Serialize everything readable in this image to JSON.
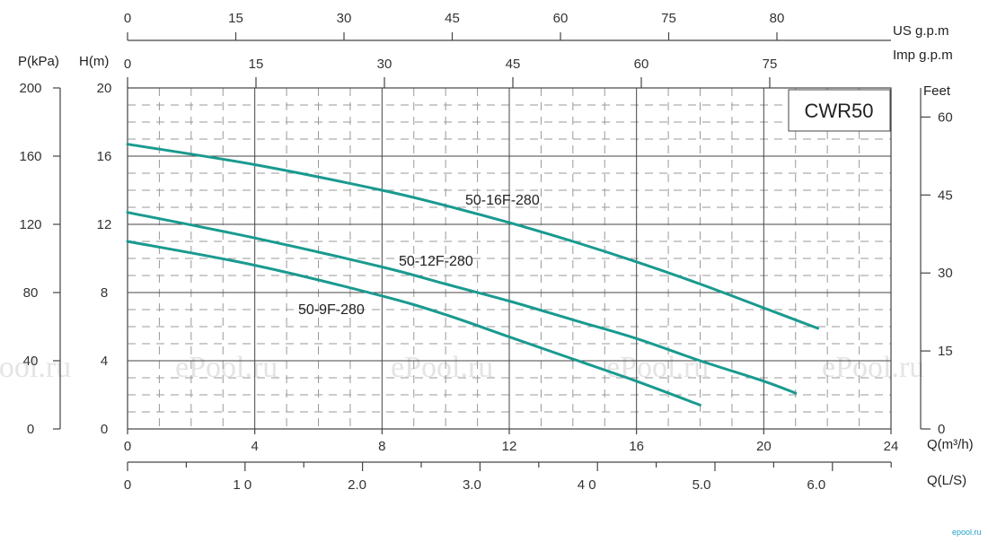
{
  "chart_data": {
    "type": "line",
    "model_label": "CWR50",
    "x": {
      "unit_label": "Q(m³/h)",
      "range": [
        0,
        24
      ],
      "ticks": [
        "0",
        "4",
        "8",
        "12",
        "16",
        "20",
        "24"
      ]
    },
    "y": {
      "unit_label": "H(m)",
      "range": [
        0,
        20
      ],
      "ticks": [
        "0",
        "4",
        "8",
        "12",
        "16",
        "20"
      ]
    },
    "y_kpa": {
      "unit_label": "P(kPa)",
      "ticks": [
        "0",
        "40",
        "80",
        "120",
        "160",
        "200"
      ]
    },
    "y_feet": {
      "unit_label": "Feet",
      "ticks": [
        "0",
        "15",
        "30",
        "45",
        "60"
      ]
    },
    "x_us_gpm": {
      "unit_label": "US  g.p.m",
      "ticks": [
        "0",
        "15",
        "30",
        "45",
        "60",
        "75",
        "80"
      ]
    },
    "x_imp_gpm": {
      "unit_label": "Imp  g.p.m",
      "ticks": [
        "0",
        "15",
        "30",
        "45",
        "60",
        "75"
      ]
    },
    "x_ls": {
      "unit_label": "Q(L/S)",
      "ticks": [
        "0",
        "1 0",
        "2.0",
        "3.0",
        "4 0",
        "5.0",
        "6.0"
      ]
    },
    "series": [
      {
        "name": "50-16F-280",
        "color": "#199a8f",
        "x": [
          0,
          4,
          8,
          10,
          12,
          14,
          16,
          18,
          20,
          21.7
        ],
        "y": [
          16.7,
          15.5,
          14.0,
          13.1,
          12.1,
          11.0,
          9.8,
          8.5,
          7.1,
          5.9
        ]
      },
      {
        "name": "50-12F-280",
        "color": "#199a8f",
        "x": [
          0,
          4,
          8,
          10,
          12,
          14,
          16,
          18,
          20,
          21
        ],
        "y": [
          12.7,
          11.2,
          9.5,
          8.5,
          7.5,
          6.4,
          5.3,
          4.0,
          2.8,
          2.1
        ]
      },
      {
        "name": "50-9F-280",
        "color": "#199a8f",
        "x": [
          0,
          4,
          8,
          10,
          12,
          14,
          16,
          18
        ],
        "y": [
          11.0,
          9.6,
          7.8,
          6.7,
          5.4,
          4.1,
          2.8,
          1.4
        ]
      }
    ],
    "grid": true
  },
  "watermarks": [
    "Pool.ru",
    "ePool.ru",
    "ePool.ru",
    "ePool.ru",
    "ePool.ru"
  ],
  "brand": "epool.ru"
}
